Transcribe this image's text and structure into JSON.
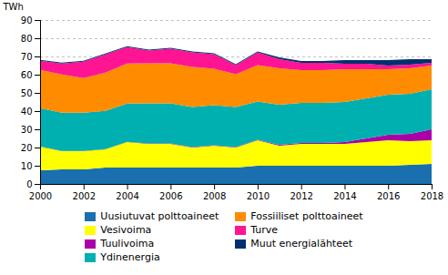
{
  "chart_data": {
    "type": "area",
    "stacked": true,
    "ylabel": "TWh",
    "x": [
      2000,
      2001,
      2002,
      2003,
      2004,
      2005,
      2006,
      2007,
      2008,
      2009,
      2010,
      2011,
      2012,
      2013,
      2014,
      2015,
      2016,
      2017,
      2018
    ],
    "xlim": [
      2000,
      2018
    ],
    "xticks": [
      2000,
      2002,
      2004,
      2006,
      2008,
      2010,
      2012,
      2014,
      2016,
      2018
    ],
    "ylim": [
      0,
      90
    ],
    "yticks": [
      0,
      10,
      20,
      30,
      40,
      50,
      60,
      70,
      80,
      90
    ],
    "grid": true,
    "legend": "bottom",
    "series": [
      {
        "name": "Uusiutuvat polttoaineet",
        "color": "#1a6faf",
        "values": [
          7.5,
          8,
          8,
          9,
          9,
          9,
          9,
          9,
          9,
          9,
          10,
          10,
          10,
          10,
          10,
          10,
          10,
          10.5,
          11
        ]
      },
      {
        "name": "Vesivoima",
        "color": "#ffff00",
        "values": [
          13,
          10,
          10,
          10,
          14,
          13,
          13,
          11,
          12,
          11,
          14,
          11,
          12,
          12,
          12,
          13,
          14,
          13,
          13
        ]
      },
      {
        "name": "Tuulivoima",
        "color": "#aa00aa",
        "values": [
          0.1,
          0.1,
          0.1,
          0.1,
          0.1,
          0.2,
          0.2,
          0.2,
          0.2,
          0.3,
          0.3,
          0.5,
          0.5,
          0.5,
          1,
          2,
          3,
          4,
          6
        ]
      },
      {
        "name": "Ydinenergia",
        "color": "#00b0b0",
        "values": [
          21,
          21,
          21,
          21,
          21,
          22,
          22,
          22,
          22,
          22,
          21,
          22,
          22,
          22,
          22,
          22,
          22,
          22,
          22
        ]
      },
      {
        "name": "Fossiiliset polttoaineet",
        "color": "#ff8c00",
        "values": [
          21,
          21,
          19,
          21,
          22,
          22,
          22,
          22,
          20,
          18,
          20,
          20,
          18,
          18,
          18,
          16,
          14,
          14,
          13
        ]
      },
      {
        "name": "Turve",
        "color": "#ff1493",
        "values": [
          5,
          6,
          9,
          10,
          9,
          7,
          8,
          8,
          8,
          5,
          7,
          5,
          4,
          4,
          3,
          3,
          2,
          2,
          1.5
        ]
      },
      {
        "name": "Muut energialähteet",
        "color": "#003070",
        "values": [
          0.5,
          0.5,
          0.5,
          0.5,
          0.5,
          0.5,
          0.5,
          0.5,
          0.5,
          0.5,
          0.5,
          1,
          1,
          1,
          2,
          2,
          3,
          3,
          2
        ]
      }
    ]
  }
}
